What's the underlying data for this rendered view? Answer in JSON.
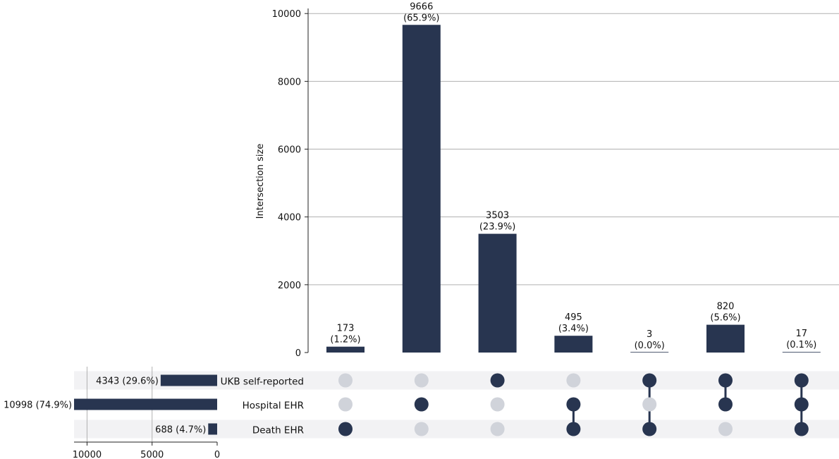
{
  "chart_data": {
    "type": "bar",
    "subtype": "upset",
    "ylabel": "Intersection size",
    "ylim": [
      0,
      10150
    ],
    "yticks": [
      0,
      2000,
      4000,
      6000,
      8000,
      10000
    ],
    "grid": true,
    "bar_color": "#283550",
    "inactive_dot_color": "#d0d3da",
    "stripe_color": "#f2f2f4",
    "sets": [
      {
        "name": "UKB self-reported",
        "size": 4343,
        "size_label": "4343 (29.6%)"
      },
      {
        "name": "Hospital EHR",
        "size": 10998,
        "size_label": "10998 (74.9%)"
      },
      {
        "name": "Death EHR",
        "size": 688,
        "size_label": "688 (4.7%)"
      }
    ],
    "set_size_ticks": [
      10000,
      5000,
      0
    ],
    "set_size_xlim": [
      0,
      11000
    ],
    "intersections": [
      {
        "members": [
          "Death EHR"
        ],
        "value": 173,
        "count_label": "173",
        "pct_label": "(1.2%)"
      },
      {
        "members": [
          "Hospital EHR"
        ],
        "value": 9666,
        "count_label": "9666",
        "pct_label": "(65.9%)"
      },
      {
        "members": [
          "UKB self-reported"
        ],
        "value": 3503,
        "count_label": "3503",
        "pct_label": "(23.9%)"
      },
      {
        "members": [
          "Hospital EHR",
          "Death EHR"
        ],
        "value": 495,
        "count_label": "495",
        "pct_label": "(3.4%)"
      },
      {
        "members": [
          "UKB self-reported",
          "Death EHR"
        ],
        "value": 3,
        "count_label": "3",
        "pct_label": "(0.0%)"
      },
      {
        "members": [
          "UKB self-reported",
          "Hospital EHR"
        ],
        "value": 820,
        "count_label": "820",
        "pct_label": "(5.6%)"
      },
      {
        "members": [
          "UKB self-reported",
          "Hospital EHR",
          "Death EHR"
        ],
        "value": 17,
        "count_label": "17",
        "pct_label": "(0.1%)"
      }
    ]
  }
}
